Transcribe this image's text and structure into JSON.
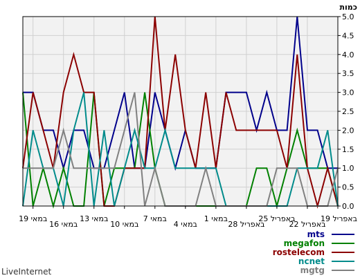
{
  "brand": "LiveInternet",
  "chart_data": {
    "type": "line",
    "title": "",
    "ylabel": "כמות",
    "xlabel": "",
    "ylim": [
      0,
      5
    ],
    "yticks": [
      0.0,
      0.5,
      1.0,
      1.5,
      2.0,
      2.5,
      3.0,
      3.5,
      4.0,
      4.5,
      5.0
    ],
    "ytick_labels": [
      "0.0",
      "0.5",
      "1.0",
      "1.5",
      "2.0",
      "2.5",
      "3.0",
      "3.5",
      "4.0",
      "4.5",
      "5.0"
    ],
    "x_direction": "right-to-left",
    "x_points": 32,
    "xtick_labels": [
      {
        "index": 0,
        "label": "19 באפריל",
        "row": 0
      },
      {
        "index": 3,
        "label": "22 באפריל",
        "row": 1
      },
      {
        "index": 6,
        "label": "25 באפריל",
        "row": 0
      },
      {
        "index": 9,
        "label": "28 באפריל",
        "row": 1
      },
      {
        "index": 12,
        "label": "1 במאי",
        "row": 0
      },
      {
        "index": 15,
        "label": "4 במאי",
        "row": 1
      },
      {
        "index": 18,
        "label": "7 במאי",
        "row": 0
      },
      {
        "index": 21,
        "label": "10 במאי",
        "row": 1
      },
      {
        "index": 24,
        "label": "13 במאי",
        "row": 0
      },
      {
        "index": 27,
        "label": "16 במאי",
        "row": 1
      },
      {
        "index": 30,
        "label": "19 במאי",
        "row": 0
      }
    ],
    "grid": true,
    "legend_position": "bottom-right",
    "series": [
      {
        "name": "mts",
        "color": "#00008b",
        "values": [
          1,
          1,
          2,
          2,
          5,
          2,
          2,
          3,
          2,
          3,
          3,
          3,
          1,
          1,
          1,
          2,
          1,
          2,
          3,
          1,
          1,
          3,
          2,
          1,
          1,
          2,
          2,
          1,
          2,
          2,
          3,
          3
        ]
      },
      {
        "name": "megafon",
        "color": "#008000",
        "values": [
          0,
          1,
          1,
          1,
          2,
          1,
          0,
          1,
          1,
          0,
          0,
          0,
          0,
          0,
          0,
          0,
          0,
          0,
          1,
          3,
          1,
          1,
          1,
          0,
          3,
          0,
          0,
          1,
          0,
          1,
          0,
          3
        ]
      },
      {
        "name": "rostelecom",
        "color": "#8b0000",
        "values": [
          0,
          1,
          0,
          1,
          4,
          1,
          2,
          2,
          2,
          2,
          2,
          3,
          1,
          3,
          1,
          2,
          4,
          2,
          5,
          1,
          1,
          1,
          0,
          0,
          3,
          3,
          4,
          3,
          1,
          2,
          3,
          1
        ]
      },
      {
        "name": "ncnet",
        "color": "#008b8b",
        "values": [
          0,
          2,
          1,
          1,
          1,
          0,
          0,
          0,
          0,
          0,
          0,
          0,
          1,
          1,
          1,
          1,
          1,
          2,
          1,
          1,
          2,
          1,
          0,
          2,
          0,
          3,
          2,
          0,
          1,
          1,
          2,
          0
        ]
      },
      {
        "name": "mgtg",
        "color": "#808080",
        "values": [
          1,
          0,
          0,
          0,
          1,
          1,
          1,
          0,
          0,
          0,
          0,
          0,
          0,
          1,
          0,
          0,
          0,
          0,
          1,
          0,
          3,
          2,
          1,
          1,
          1,
          1,
          1,
          2,
          1,
          1,
          1,
          1
        ]
      }
    ]
  }
}
